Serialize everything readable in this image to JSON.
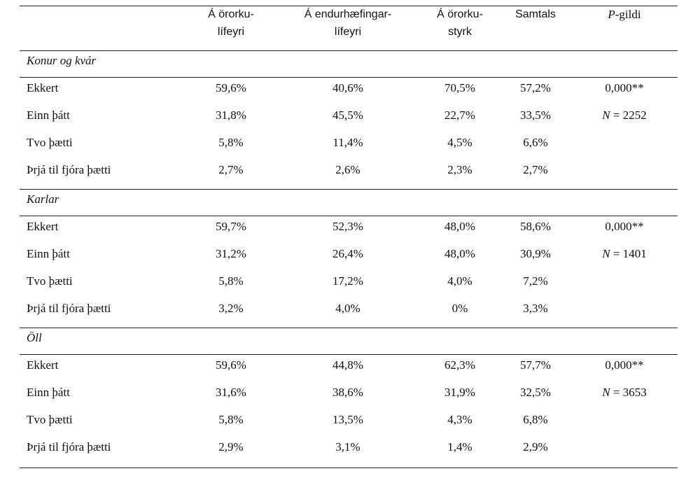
{
  "table": {
    "headers": [
      {
        "lines": [
          "Á örorku-",
          "lífeyri"
        ]
      },
      {
        "lines": [
          "Á endurhæfingar-",
          "lífeyri"
        ]
      },
      {
        "lines": [
          "Á örorku-",
          "styrk"
        ]
      },
      {
        "lines": [
          "Samtals"
        ]
      },
      {
        "italic": "P",
        "text": "-gildi"
      }
    ],
    "sections": [
      {
        "label": "Konur og kvár",
        "rows": [
          {
            "label": "Ekkert",
            "values": [
              "59,6%",
              "40,6%",
              "70,5%",
              "57,2%"
            ],
            "note": "0,000**"
          },
          {
            "label": "Einn þátt",
            "values": [
              "31,8%",
              "45,5%",
              "22,7%",
              "33,5%"
            ],
            "note": {
              "italic": "N",
              "text": "= 2252"
            }
          },
          {
            "label": "Tvo þætti",
            "values": [
              "5,8%",
              "11,4%",
              "4,5%",
              "6,6%"
            ]
          },
          {
            "label": "Þrjá til fjóra þætti",
            "values": [
              "2,7%",
              "2,6%",
              "2,3%",
              "2,7%"
            ]
          }
        ]
      },
      {
        "label": "Karlar",
        "rows": [
          {
            "label": "Ekkert",
            "values": [
              "59,7%",
              "52,3%",
              "48,0%",
              "58,6%"
            ],
            "note": "0,000**"
          },
          {
            "label": "Einn þátt",
            "values": [
              "31,2%",
              "26,4%",
              "48,0%",
              "30,9%"
            ],
            "note": {
              "italic": "N",
              "text": "= 1401"
            }
          },
          {
            "label": "Tvo þætti",
            "values": [
              "5,8%",
              "17,2%",
              "4,0%",
              "7,2%"
            ]
          },
          {
            "label": "Þrjá til fjóra þætti",
            "values": [
              "3,2%",
              "4,0%",
              "0%",
              "3,3%"
            ]
          }
        ]
      },
      {
        "label": "Öll",
        "rows": [
          {
            "label": "Ekkert",
            "values": [
              "59,6%",
              "44,8%",
              "62,3%",
              "57,7%"
            ],
            "note": "0,000**"
          },
          {
            "label": "Einn þátt",
            "values": [
              "31,6%",
              "38,6%",
              "31,9%",
              "32,5%"
            ],
            "note": {
              "italic": "N",
              "text": "= 3653"
            }
          },
          {
            "label": "Tvo þætti",
            "values": [
              "5,8%",
              "13,5%",
              "4,3%",
              "6,8%"
            ]
          },
          {
            "label": "Þrjá til fjóra þætti",
            "values": [
              "2,9%",
              "3,1%",
              "1,4%",
              "2,9%"
            ]
          }
        ]
      }
    ]
  }
}
